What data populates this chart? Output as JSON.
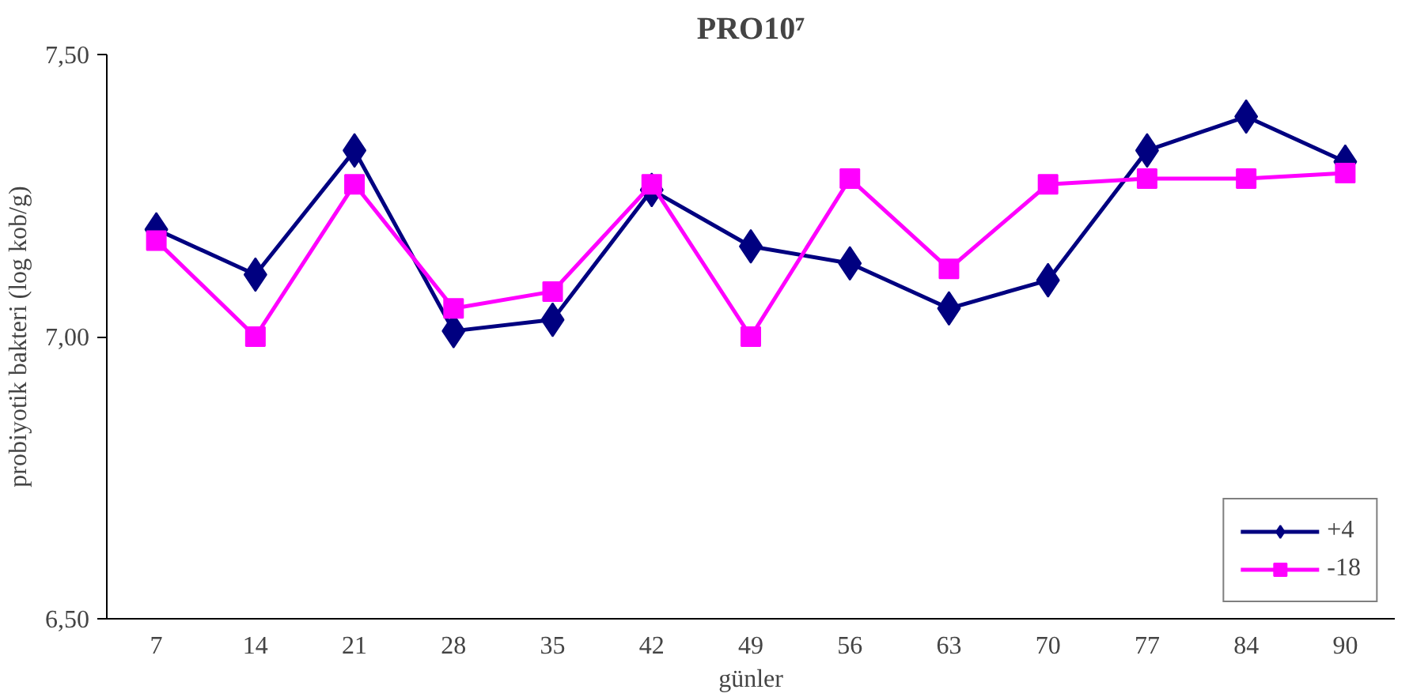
{
  "chart_data": {
    "type": "line",
    "title": "PRO10⁷",
    "xlabel": "günler",
    "ylabel": "probiyotik bakteri (log kob/g)",
    "categories": [
      "7",
      "14",
      "21",
      "28",
      "35",
      "42",
      "49",
      "56",
      "63",
      "70",
      "77",
      "84",
      "90"
    ],
    "series": [
      {
        "name": "+4",
        "color": "#000080",
        "marker": "diamond",
        "values": [
          7.19,
          7.11,
          7.33,
          7.01,
          7.03,
          7.26,
          7.16,
          7.13,
          7.05,
          7.1,
          7.33,
          7.39,
          7.31
        ]
      },
      {
        "name": "-18",
        "color": "#ff00ff",
        "marker": "square",
        "values": [
          7.17,
          7.0,
          7.27,
          7.05,
          7.08,
          7.27,
          7.0,
          7.28,
          7.12,
          7.27,
          7.28,
          7.28,
          7.29
        ]
      }
    ],
    "ylim": [
      6.5,
      7.5
    ],
    "yticks": [
      {
        "value": 6.5,
        "label": "6,50"
      },
      {
        "value": 7.0,
        "label": "7,00"
      },
      {
        "value": 7.5,
        "label": "7,50"
      }
    ],
    "grid": false,
    "legend": "bottom right",
    "line_style": "solid"
  }
}
